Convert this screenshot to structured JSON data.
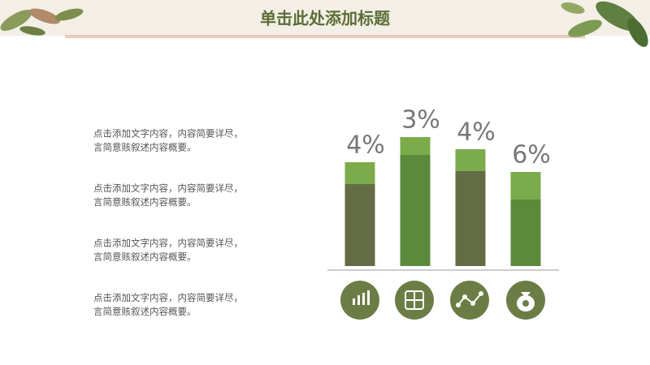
{
  "header": {
    "title": "单击此处添加标题"
  },
  "text_blocks": [
    [
      "点击添加文字内容，内容简要详尽，",
      "言简意赅叙述内容概要。"
    ],
    [
      "点击添加文字内容，内容简要详尽，",
      "言简意赅叙述内容概要。"
    ],
    [
      "点击添加文字内容，内容简要详尽，",
      "言简意赅叙述内容概要。"
    ],
    [
      "点击添加文字内容，内容简要详尽，",
      "言简意赅叙述内容概要。"
    ]
  ],
  "chart_data": {
    "type": "bar",
    "stacked": true,
    "annotations": [
      "4%",
      "3%",
      "4%",
      "6%"
    ],
    "categories": [
      null,
      null,
      null,
      null
    ],
    "series": [
      {
        "colors": [
          "#646c45",
          "#5b8a3c",
          "#646c45",
          "#5b8a3c"
        ],
        "values": [
          101,
          137,
          117,
          82
        ]
      },
      {
        "color": "#7cab4b",
        "values": [
          27,
          22,
          27,
          34
        ]
      }
    ],
    "ylim": [
      0,
      180
    ]
  }
}
